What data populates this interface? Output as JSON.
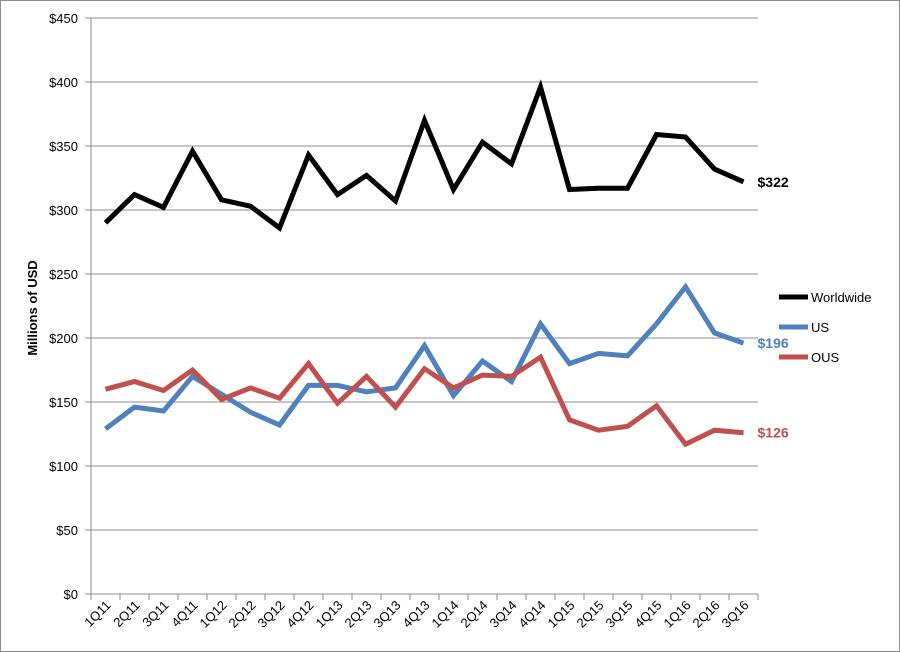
{
  "chart_data": {
    "type": "line",
    "title": "",
    "xlabel": "",
    "ylabel": "Millions of USD",
    "ylim": [
      0,
      450
    ],
    "y_ticks": [
      0,
      50,
      100,
      150,
      200,
      250,
      300,
      350,
      400,
      450
    ],
    "y_tick_labels": [
      "$0",
      "$50",
      "$100",
      "$150",
      "$200",
      "$250",
      "$300",
      "$350",
      "$400",
      "$450"
    ],
    "grid": "horizontal",
    "legend_position": "right",
    "categories": [
      "1Q11",
      "2Q11",
      "3Q11",
      "4Q11",
      "1Q12",
      "2Q12",
      "3Q12",
      "4Q12",
      "1Q13",
      "2Q13",
      "3Q13",
      "4Q13",
      "1Q14",
      "2Q14",
      "3Q14",
      "4Q14",
      "1Q15",
      "2Q15",
      "3Q15",
      "4Q15",
      "1Q16",
      "2Q16",
      "3Q16"
    ],
    "series": [
      {
        "name": "Worldwide",
        "color": "#000000",
        "values": [
          290,
          312,
          302,
          346,
          308,
          303,
          286,
          343,
          312,
          327,
          307,
          370,
          316,
          353,
          336,
          396,
          316,
          317,
          317,
          359,
          357,
          332,
          322
        ],
        "end_label": "$322"
      },
      {
        "name": "US",
        "color": "#4f81bd",
        "values": [
          129,
          146,
          143,
          170,
          156,
          142,
          132,
          163,
          163,
          158,
          161,
          194,
          155,
          182,
          166,
          211,
          180,
          188,
          186,
          211,
          240,
          204,
          196
        ],
        "end_label": "$196"
      },
      {
        "name": "OUS",
        "color": "#c0504d",
        "values": [
          160,
          166,
          159,
          175,
          152,
          161,
          153,
          180,
          149,
          170,
          146,
          176,
          161,
          171,
          170,
          185,
          136,
          128,
          131,
          147,
          117,
          128,
          126
        ],
        "end_label": "$126"
      }
    ]
  }
}
